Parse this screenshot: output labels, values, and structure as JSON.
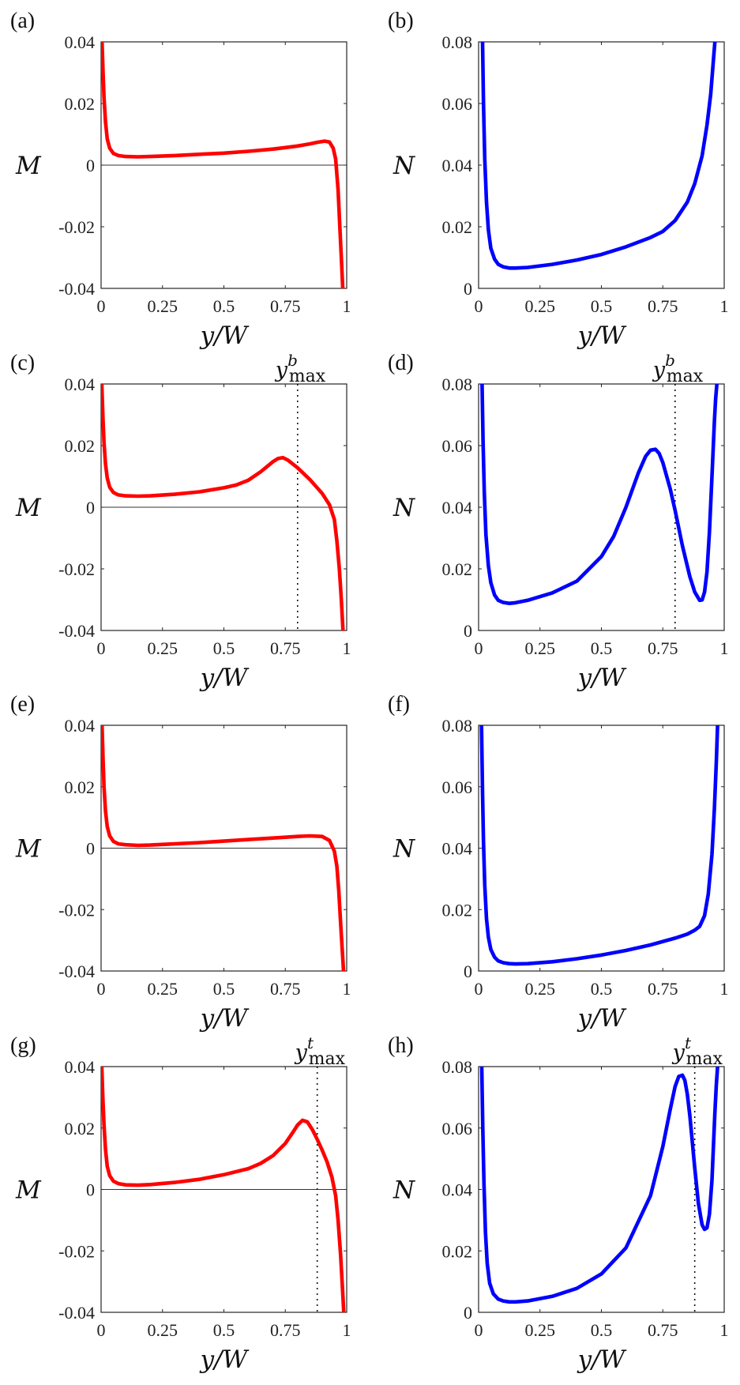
{
  "figure": {
    "background": "#ffffff"
  },
  "chart_data": [
    {
      "panel": "(a)",
      "type": "line",
      "xlabel": "y/W",
      "ylabel": "M",
      "xlim": [
        0,
        1
      ],
      "ylim": [
        -0.04,
        0.04
      ],
      "xticks": [
        0,
        0.25,
        0.5,
        0.75,
        1
      ],
      "xtick_labels": [
        "0",
        "0.25",
        "0.5",
        "0.75",
        "1"
      ],
      "yticks": [
        -0.04,
        -0.02,
        0,
        0.02,
        0.04
      ],
      "ytick_labels": [
        "-0.04",
        "-0.02",
        "0",
        "0.02",
        "0.04"
      ],
      "zero_line": true,
      "grid": false,
      "color": "#ff0000",
      "series": [
        {
          "name": "M",
          "x": [
            0.004,
            0.008,
            0.012,
            0.018,
            0.025,
            0.035,
            0.05,
            0.07,
            0.1,
            0.15,
            0.2,
            0.3,
            0.4,
            0.5,
            0.6,
            0.7,
            0.75,
            0.8,
            0.85,
            0.88,
            0.91,
            0.93,
            0.945,
            0.955,
            0.965,
            0.972,
            0.978,
            0.984
          ],
          "y": [
            0.04,
            0.03,
            0.022,
            0.014,
            0.0085,
            0.0055,
            0.0038,
            0.0031,
            0.0028,
            0.0027,
            0.0028,
            0.0031,
            0.0035,
            0.0039,
            0.0045,
            0.0052,
            0.0057,
            0.0062,
            0.0069,
            0.0074,
            0.0078,
            0.0075,
            0.0055,
            0.002,
            -0.008,
            -0.02,
            -0.03,
            -0.04
          ]
        }
      ]
    },
    {
      "panel": "(b)",
      "type": "line",
      "xlabel": "y/W",
      "ylabel": "N",
      "xlim": [
        0,
        1
      ],
      "ylim": [
        0,
        0.08
      ],
      "xticks": [
        0,
        0.25,
        0.5,
        0.75,
        1
      ],
      "xtick_labels": [
        "0",
        "0.25",
        "0.5",
        "0.75",
        "1"
      ],
      "yticks": [
        0,
        0.02,
        0.04,
        0.06,
        0.08
      ],
      "ytick_labels": [
        "0",
        "0.02",
        "0.04",
        "0.06",
        "0.08"
      ],
      "grid": false,
      "color": "#0000ff",
      "series": [
        {
          "name": "N",
          "x": [
            0.016,
            0.02,
            0.025,
            0.032,
            0.04,
            0.05,
            0.065,
            0.08,
            0.1,
            0.125,
            0.15,
            0.2,
            0.3,
            0.4,
            0.5,
            0.6,
            0.7,
            0.75,
            0.8,
            0.85,
            0.88,
            0.91,
            0.93,
            0.945,
            0.955,
            0.962
          ],
          "y": [
            0.08,
            0.06,
            0.042,
            0.028,
            0.019,
            0.013,
            0.0095,
            0.0078,
            0.007,
            0.0066,
            0.0066,
            0.0068,
            0.0078,
            0.0092,
            0.011,
            0.0135,
            0.0165,
            0.0185,
            0.022,
            0.028,
            0.034,
            0.043,
            0.053,
            0.063,
            0.073,
            0.08
          ]
        }
      ]
    },
    {
      "panel": "(c)",
      "type": "line",
      "xlabel": "y/W",
      "ylabel": "M",
      "xlim": [
        0,
        1
      ],
      "ylim": [
        -0.04,
        0.04
      ],
      "xticks": [
        0,
        0.25,
        0.5,
        0.75,
        1
      ],
      "xtick_labels": [
        "0",
        "0.25",
        "0.5",
        "0.75",
        "1"
      ],
      "yticks": [
        -0.04,
        -0.02,
        0,
        0.02,
        0.04
      ],
      "ytick_labels": [
        "-0.04",
        "-0.02",
        "0",
        "0.02",
        "0.04"
      ],
      "zero_line": true,
      "grid": false,
      "color": "#ff0000",
      "vline": {
        "x": 0.8,
        "label_base": "y",
        "label_sup": "b",
        "label_sub": "max"
      },
      "series": [
        {
          "name": "M",
          "x": [
            0.003,
            0.007,
            0.012,
            0.018,
            0.025,
            0.035,
            0.05,
            0.07,
            0.1,
            0.15,
            0.2,
            0.3,
            0.4,
            0.5,
            0.55,
            0.6,
            0.65,
            0.7,
            0.72,
            0.74,
            0.76,
            0.8,
            0.85,
            0.9,
            0.93,
            0.95,
            0.96,
            0.97,
            0.978,
            0.985
          ],
          "y": [
            0.04,
            0.03,
            0.021,
            0.014,
            0.0095,
            0.0065,
            0.0048,
            0.004,
            0.0037,
            0.0036,
            0.0037,
            0.0042,
            0.005,
            0.0063,
            0.0072,
            0.0088,
            0.0115,
            0.0148,
            0.0158,
            0.0161,
            0.0153,
            0.0128,
            0.009,
            0.0045,
            0.0008,
            -0.004,
            -0.011,
            -0.02,
            -0.03,
            -0.04
          ]
        }
      ]
    },
    {
      "panel": "(d)",
      "type": "line",
      "xlabel": "y/W",
      "ylabel": "N",
      "xlim": [
        0,
        1
      ],
      "ylim": [
        0,
        0.08
      ],
      "xticks": [
        0,
        0.25,
        0.5,
        0.75,
        1
      ],
      "xtick_labels": [
        "0",
        "0.25",
        "0.5",
        "0.75",
        "1"
      ],
      "yticks": [
        0,
        0.02,
        0.04,
        0.06,
        0.08
      ],
      "ytick_labels": [
        "0",
        "0.02",
        "0.04",
        "0.06",
        "0.08"
      ],
      "grid": false,
      "color": "#0000ff",
      "vline": {
        "x": 0.8,
        "label_base": "y",
        "label_sup": "b",
        "label_sub": "max"
      },
      "series": [
        {
          "name": "N",
          "x": [
            0.014,
            0.018,
            0.023,
            0.03,
            0.04,
            0.05,
            0.065,
            0.08,
            0.1,
            0.125,
            0.15,
            0.2,
            0.3,
            0.4,
            0.5,
            0.55,
            0.6,
            0.65,
            0.68,
            0.7,
            0.72,
            0.735,
            0.75,
            0.78,
            0.8,
            0.83,
            0.86,
            0.88,
            0.9,
            0.91,
            0.92,
            0.93,
            0.94,
            0.95,
            0.96,
            0.965,
            0.97
          ],
          "y": [
            0.08,
            0.062,
            0.045,
            0.031,
            0.021,
            0.0155,
            0.0115,
            0.0098,
            0.0091,
            0.0088,
            0.009,
            0.0098,
            0.0122,
            0.016,
            0.024,
            0.0305,
            0.04,
            0.051,
            0.0565,
            0.0585,
            0.0588,
            0.0575,
            0.0545,
            0.046,
            0.039,
            0.0275,
            0.0175,
            0.0125,
            0.0098,
            0.0099,
            0.0125,
            0.019,
            0.032,
            0.05,
            0.068,
            0.075,
            0.08
          ]
        }
      ]
    },
    {
      "panel": "(e)",
      "type": "line",
      "xlabel": "y/W",
      "ylabel": "M",
      "xlim": [
        0,
        1
      ],
      "ylim": [
        -0.04,
        0.04
      ],
      "xticks": [
        0,
        0.25,
        0.5,
        0.75,
        1
      ],
      "xtick_labels": [
        "0",
        "0.25",
        "0.5",
        "0.75",
        "1"
      ],
      "yticks": [
        -0.04,
        -0.02,
        0,
        0.02,
        0.04
      ],
      "ytick_labels": [
        "-0.04",
        "-0.02",
        "0",
        "0.02",
        "0.04"
      ],
      "zero_line": true,
      "grid": false,
      "color": "#ff0000",
      "series": [
        {
          "name": "M",
          "x": [
            0.004,
            0.008,
            0.012,
            0.018,
            0.025,
            0.035,
            0.05,
            0.07,
            0.1,
            0.15,
            0.2,
            0.3,
            0.4,
            0.5,
            0.6,
            0.7,
            0.8,
            0.85,
            0.9,
            0.93,
            0.95,
            0.96,
            0.968,
            0.975,
            0.981,
            0.987
          ],
          "y": [
            0.04,
            0.029,
            0.02,
            0.012,
            0.007,
            0.004,
            0.0022,
            0.0014,
            0.0011,
            0.0009,
            0.001,
            0.0014,
            0.0018,
            0.0023,
            0.0028,
            0.0033,
            0.0038,
            0.004,
            0.0038,
            0.0025,
            -0.001,
            -0.006,
            -0.014,
            -0.024,
            -0.032,
            -0.04
          ]
        }
      ]
    },
    {
      "panel": "(f)",
      "type": "line",
      "xlabel": "y/W",
      "ylabel": "N",
      "xlim": [
        0,
        1
      ],
      "ylim": [
        0,
        0.08
      ],
      "xticks": [
        0,
        0.25,
        0.5,
        0.75,
        1
      ],
      "xtick_labels": [
        "0",
        "0.25",
        "0.5",
        "0.75",
        "1"
      ],
      "yticks": [
        0,
        0.02,
        0.04,
        0.06,
        0.08
      ],
      "ytick_labels": [
        "0",
        "0.02",
        "0.04",
        "0.06",
        "0.08"
      ],
      "grid": false,
      "color": "#0000ff",
      "series": [
        {
          "name": "N",
          "x": [
            0.012,
            0.016,
            0.02,
            0.025,
            0.032,
            0.04,
            0.05,
            0.065,
            0.08,
            0.1,
            0.125,
            0.15,
            0.2,
            0.3,
            0.4,
            0.5,
            0.6,
            0.7,
            0.8,
            0.85,
            0.88,
            0.9,
            0.92,
            0.935,
            0.95,
            0.96,
            0.968,
            0.973
          ],
          "y": [
            0.08,
            0.058,
            0.042,
            0.028,
            0.017,
            0.011,
            0.007,
            0.0045,
            0.0033,
            0.0027,
            0.0024,
            0.0023,
            0.0024,
            0.003,
            0.004,
            0.0052,
            0.0067,
            0.0085,
            0.0107,
            0.012,
            0.0133,
            0.0145,
            0.018,
            0.025,
            0.038,
            0.053,
            0.068,
            0.08
          ]
        }
      ]
    },
    {
      "panel": "(g)",
      "type": "line",
      "xlabel": "y/W",
      "ylabel": "M",
      "xlim": [
        0,
        1
      ],
      "ylim": [
        -0.04,
        0.04
      ],
      "xticks": [
        0,
        0.25,
        0.5,
        0.75,
        1
      ],
      "xtick_labels": [
        "0",
        "0.25",
        "0.5",
        "0.75",
        "1"
      ],
      "yticks": [
        -0.04,
        -0.02,
        0,
        0.02,
        0.04
      ],
      "ytick_labels": [
        "-0.04",
        "-0.02",
        "0",
        "0.02",
        "0.04"
      ],
      "zero_line": true,
      "grid": false,
      "color": "#ff0000",
      "vline": {
        "x": 0.88,
        "label_base": "y",
        "label_sup": "t",
        "label_sub": "max"
      },
      "series": [
        {
          "name": "M",
          "x": [
            0.003,
            0.007,
            0.012,
            0.018,
            0.025,
            0.035,
            0.05,
            0.07,
            0.1,
            0.15,
            0.2,
            0.3,
            0.4,
            0.5,
            0.6,
            0.65,
            0.7,
            0.75,
            0.78,
            0.8,
            0.82,
            0.84,
            0.86,
            0.88,
            0.9,
            0.92,
            0.94,
            0.955,
            0.965,
            0.975,
            0.982,
            0.988
          ],
          "y": [
            0.04,
            0.03,
            0.021,
            0.013,
            0.0075,
            0.0045,
            0.0027,
            0.0019,
            0.0015,
            0.0014,
            0.0016,
            0.0023,
            0.0033,
            0.0048,
            0.0068,
            0.0085,
            0.011,
            0.015,
            0.0185,
            0.021,
            0.0225,
            0.022,
            0.0195,
            0.0163,
            0.0128,
            0.009,
            0.004,
            -0.002,
            -0.01,
            -0.021,
            -0.031,
            -0.04
          ]
        }
      ]
    },
    {
      "panel": "(h)",
      "type": "line",
      "xlabel": "y/W",
      "ylabel": "N",
      "xlim": [
        0,
        1
      ],
      "ylim": [
        0,
        0.08
      ],
      "xticks": [
        0,
        0.25,
        0.5,
        0.75,
        1
      ],
      "xtick_labels": [
        "0",
        "0.25",
        "0.5",
        "0.75",
        "1"
      ],
      "yticks": [
        0,
        0.02,
        0.04,
        0.06,
        0.08
      ],
      "ytick_labels": [
        "0",
        "0.02",
        "0.04",
        "0.06",
        "0.08"
      ],
      "grid": false,
      "color": "#0000ff",
      "vline": {
        "x": 0.88,
        "label_base": "y",
        "label_sup": "t",
        "label_sub": "max"
      },
      "series": [
        {
          "name": "N",
          "x": [
            0.013,
            0.017,
            0.022,
            0.028,
            0.035,
            0.045,
            0.06,
            0.08,
            0.1,
            0.125,
            0.15,
            0.2,
            0.3,
            0.4,
            0.5,
            0.6,
            0.7,
            0.75,
            0.78,
            0.8,
            0.815,
            0.83,
            0.84,
            0.85,
            0.86,
            0.87,
            0.88,
            0.895,
            0.91,
            0.92,
            0.93,
            0.94,
            0.95,
            0.955,
            0.962,
            0.968,
            0.973
          ],
          "y": [
            0.08,
            0.06,
            0.042,
            0.026,
            0.016,
            0.0095,
            0.006,
            0.0043,
            0.0037,
            0.0034,
            0.0034,
            0.0037,
            0.0052,
            0.0078,
            0.0125,
            0.021,
            0.038,
            0.054,
            0.066,
            0.0735,
            0.0768,
            0.0772,
            0.0755,
            0.071,
            0.064,
            0.0555,
            0.047,
            0.0355,
            0.0285,
            0.027,
            0.0275,
            0.032,
            0.043,
            0.052,
            0.065,
            0.074,
            0.08
          ]
        }
      ]
    }
  ]
}
